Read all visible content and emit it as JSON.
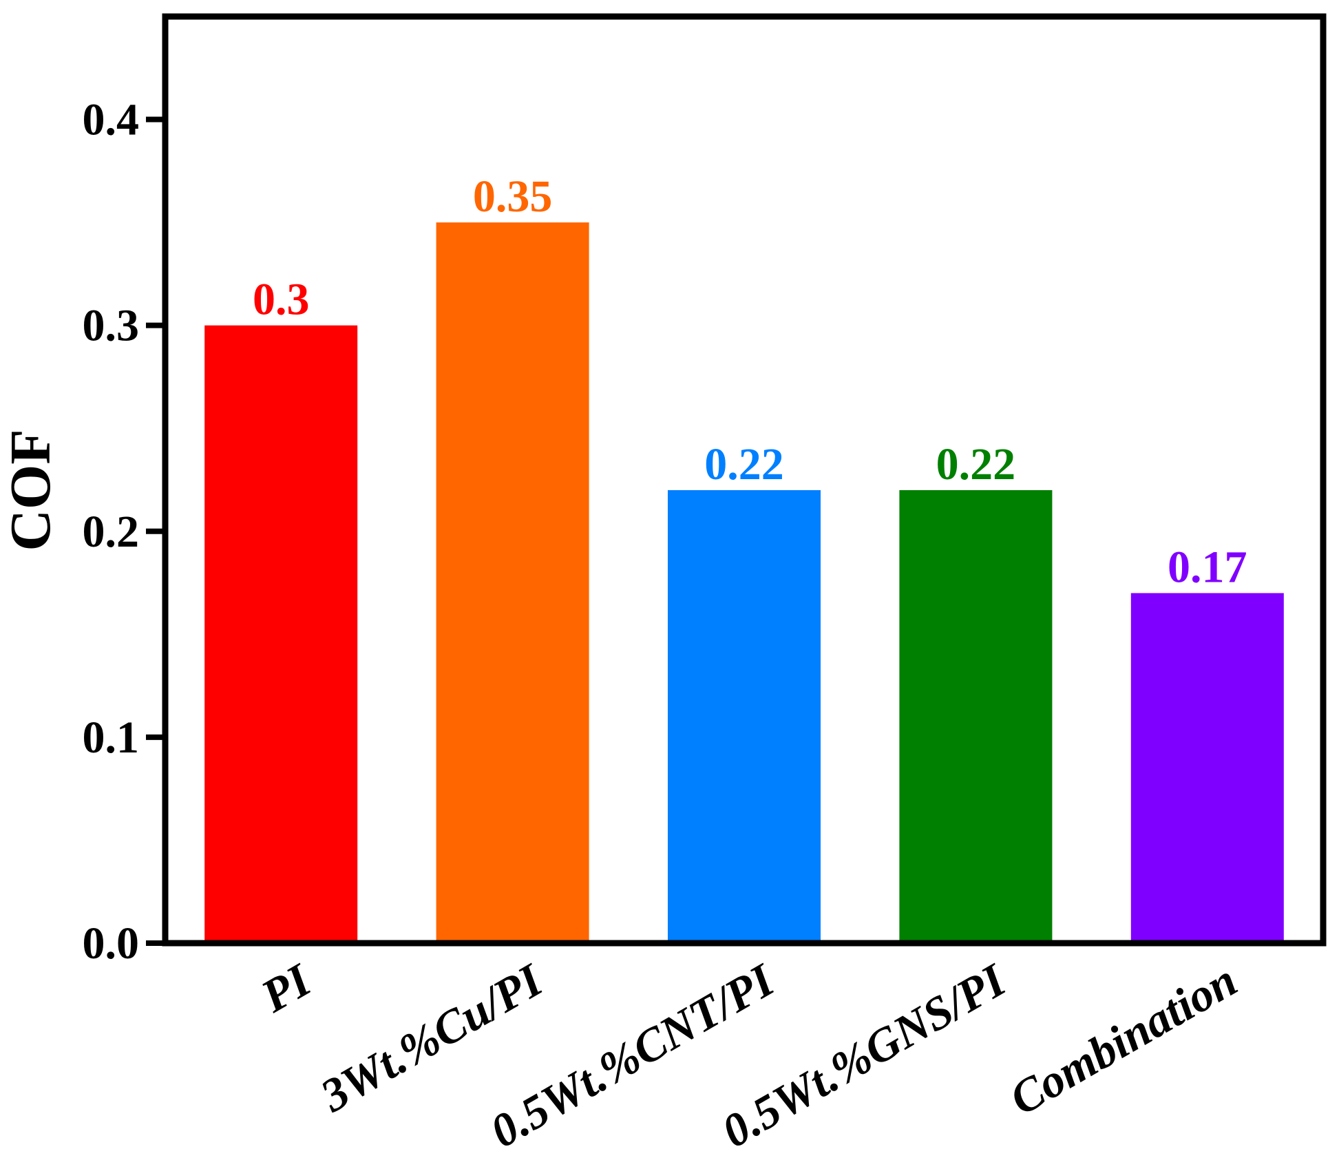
{
  "chart_data": {
    "type": "bar",
    "title": "",
    "xlabel": "",
    "ylabel": "COF",
    "ylim": [
      0,
      0.45
    ],
    "yticks": [
      0.0,
      0.1,
      0.2,
      0.3,
      0.4
    ],
    "ytick_labels": [
      "0.0",
      "0.1",
      "0.2",
      "0.3",
      "0.4"
    ],
    "categories": [
      "PI",
      "3Wt.%Cu/PI",
      "0.5Wt.%CNT/PI",
      "0.5Wt.%GNS/PI",
      "Combination"
    ],
    "values": [
      0.3,
      0.35,
      0.22,
      0.22,
      0.17
    ],
    "value_labels": [
      "0.3",
      "0.35",
      "0.22",
      "0.22",
      "0.17"
    ],
    "colors": [
      "#ff0000",
      "#ff6600",
      "#0080ff",
      "#008000",
      "#8000ff"
    ],
    "grid": false,
    "legend": "none"
  }
}
